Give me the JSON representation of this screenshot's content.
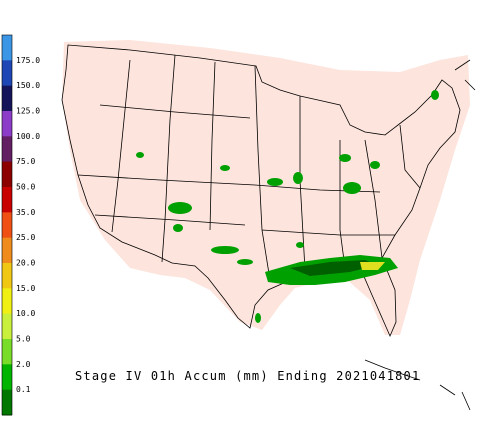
{
  "legend": {
    "labels": [
      "175.0",
      "150.0",
      "125.0",
      "100.0",
      "75.0",
      "50.0",
      "35.0",
      "25.0",
      "20.0",
      "15.0",
      "10.0",
      "5.0",
      "2.0",
      "0.1"
    ],
    "colors": [
      "#3c96e6",
      "#1e46b4",
      "#14145a",
      "#8c3cc8",
      "#641e64",
      "#8c0000",
      "#c80000",
      "#f05014",
      "#f08c1e",
      "#f0c814",
      "#f0f014",
      "#c8f03c",
      "#78dc28",
      "#00b400",
      "#007800"
    ]
  },
  "caption": "Stage IV 01h Accum (mm) Ending 2021041801"
}
